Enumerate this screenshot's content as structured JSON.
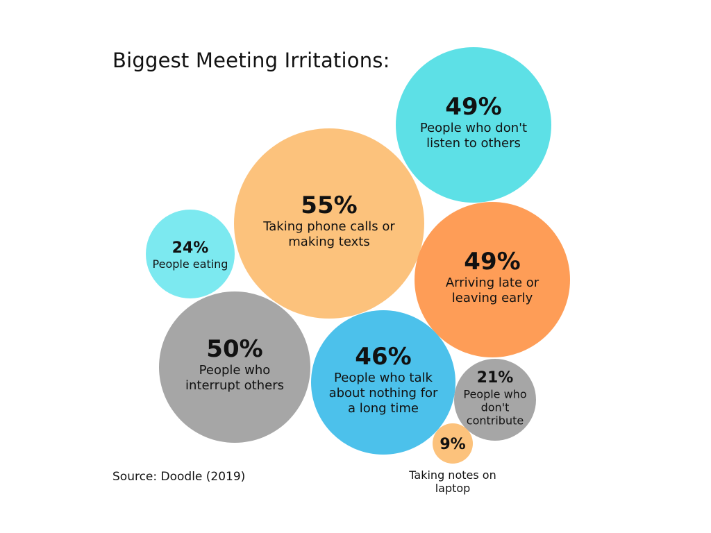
{
  "title": "Biggest Meeting Irritations:",
  "source": "Source: Doodle (2019)",
  "chart_data": {
    "type": "bubble",
    "title": "Biggest Meeting Irritations:",
    "unit": "%",
    "bubbles": [
      {
        "value": 55,
        "label_lines": [
          "Taking phone calls or",
          "making texts"
        ],
        "color": "#fcc27c"
      },
      {
        "value": 50,
        "label_lines": [
          "People who",
          "interrupt others"
        ],
        "color": "#a6a6a6"
      },
      {
        "value": 49,
        "label_lines": [
          "People who don't",
          "listen to others"
        ],
        "color": "#5de0e6"
      },
      {
        "value": 49,
        "label_lines": [
          "Arriving late or",
          "leaving early"
        ],
        "color": "#fe9d57"
      },
      {
        "value": 46,
        "label_lines": [
          "People who talk",
          "about nothing for",
          "a long time"
        ],
        "color": "#4cc1eb"
      },
      {
        "value": 24,
        "label_lines": [
          "People eating"
        ],
        "color": "#7ce9f0"
      },
      {
        "value": 21,
        "label_lines": [
          "People who",
          "don't",
          "contribute"
        ],
        "color": "#a6a6a6"
      },
      {
        "value": 9,
        "label_lines": [
          "Taking notes on",
          "laptop"
        ],
        "color": "#fcc27c"
      }
    ]
  }
}
